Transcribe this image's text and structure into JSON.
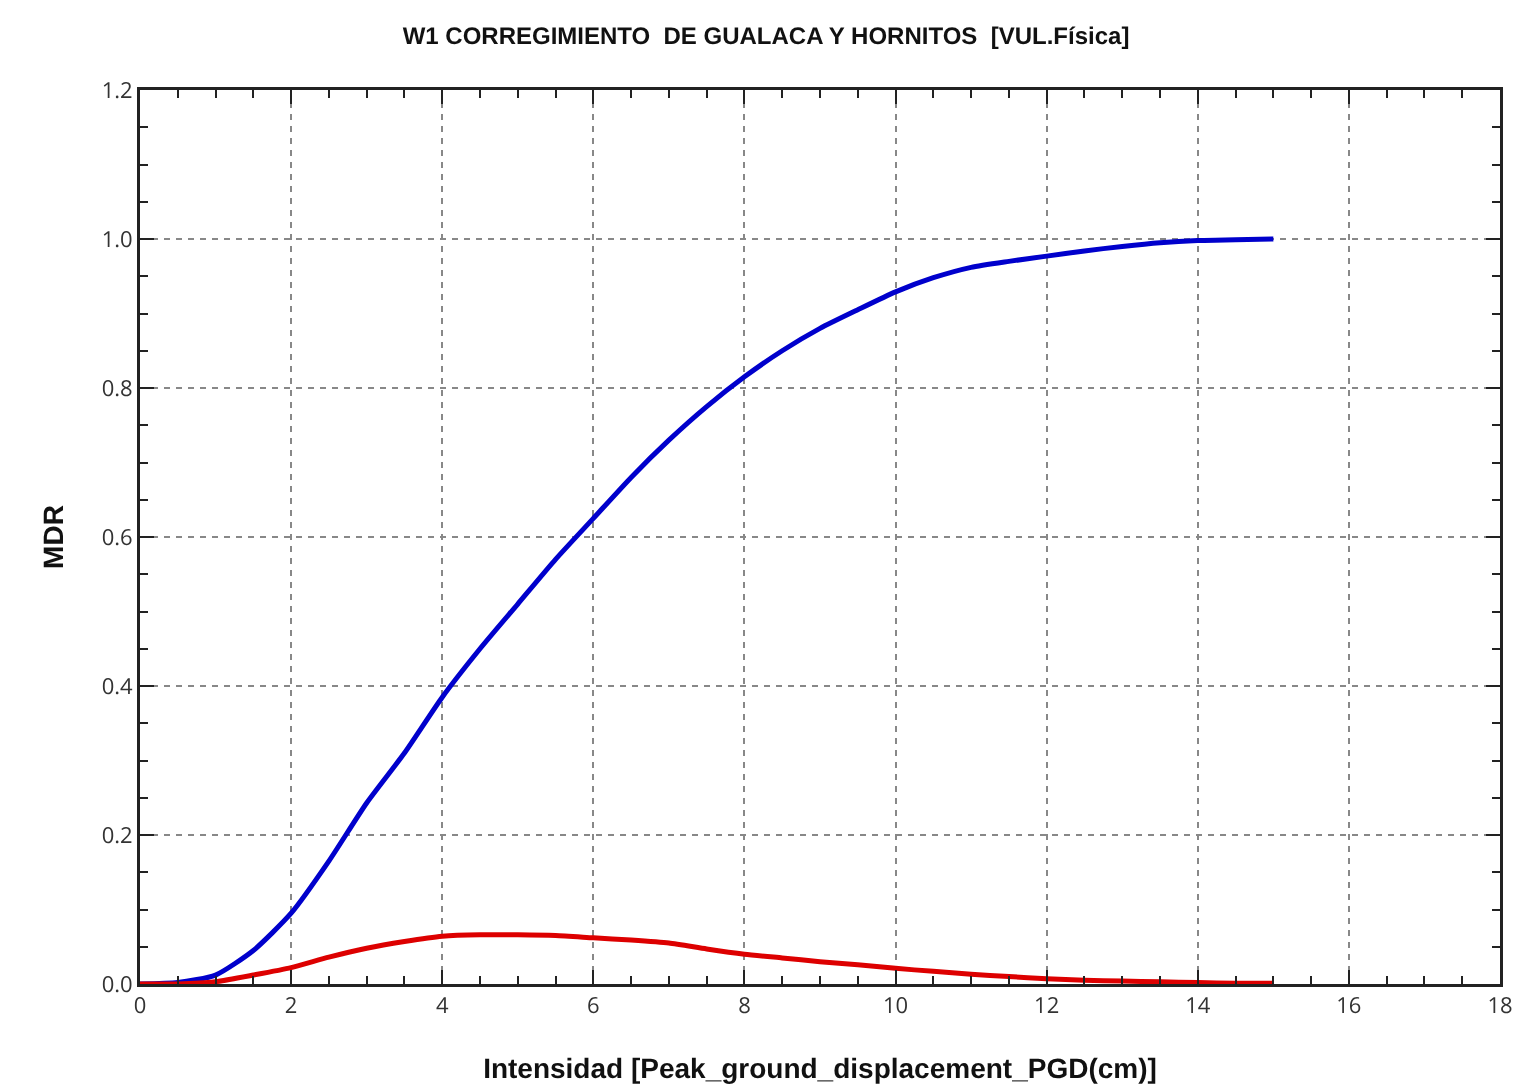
{
  "chart_data": {
    "type": "line",
    "title": "W1 CORREGIMIENTO  DE GUALACA Y HORNITOS  [VUL.Física]",
    "xlabel": "Intensidad [Peak_ground_displacement_PGD(cm)]",
    "ylabel": "MDR",
    "x": [
      0,
      0.5,
      1,
      1.5,
      2,
      2.5,
      3,
      3.5,
      4,
      4.5,
      5,
      5.5,
      6,
      6.5,
      7,
      7.5,
      8,
      8.5,
      9,
      9.5,
      10,
      10.5,
      11,
      11.5,
      12,
      12.5,
      13,
      13.5,
      14,
      14.5,
      15
    ],
    "series": [
      {
        "color": "#0000cc",
        "values": [
          0,
          0.002,
          0.012,
          0.045,
          0.095,
          0.165,
          0.243,
          0.31,
          0.385,
          0.45,
          0.51,
          0.57,
          0.625,
          0.68,
          0.73,
          0.775,
          0.815,
          0.85,
          0.88,
          0.905,
          0.929,
          0.948,
          0.962,
          0.97,
          0.977,
          0.984,
          0.99,
          0.995,
          0.998,
          0.999,
          1.0
        ]
      },
      {
        "color": "#dd0000",
        "values": [
          0,
          0,
          0.003,
          0.012,
          0.022,
          0.036,
          0.048,
          0.057,
          0.064,
          0.066,
          0.066,
          0.065,
          0.062,
          0.059,
          0.055,
          0.047,
          0.04,
          0.035,
          0.03,
          0.026,
          0.021,
          0.017,
          0.013,
          0.01,
          0.007,
          0.005,
          0.004,
          0.003,
          0.002,
          0.001,
          0.001
        ]
      }
    ],
    "xlim": [
      0,
      18
    ],
    "xticks": [
      0,
      2,
      4,
      6,
      8,
      10,
      12,
      14,
      16,
      18
    ],
    "ylim": [
      0,
      1.2
    ],
    "yticks": [
      {
        "value": 0,
        "label": "0.0"
      },
      {
        "value": 0.2,
        "label": "0.2"
      },
      {
        "value": 0.4,
        "label": "0.4"
      },
      {
        "value": 0.6,
        "label": "0.6"
      },
      {
        "value": 0.8,
        "label": "0.8"
      },
      {
        "value": 1,
        "label": "1.0"
      },
      {
        "value": 1.2,
        "label": "1.2"
      }
    ],
    "grid": true,
    "marker": "none",
    "line_style": "solid"
  }
}
